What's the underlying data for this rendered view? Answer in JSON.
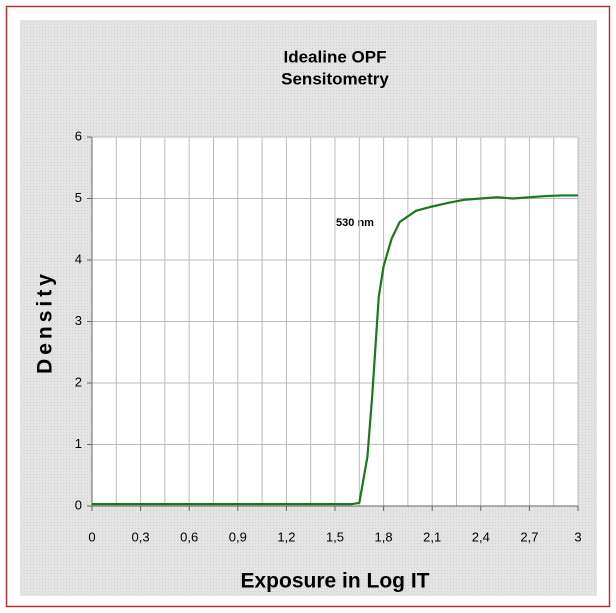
{
  "chart_data": {
    "type": "line",
    "title": [
      "Idealine OPF",
      "Sensitometry"
    ],
    "x_label": "Exposure in Log IT",
    "y_label": "Density",
    "annotation": "530 nm",
    "grid": true,
    "xlim": [
      0,
      3
    ],
    "ylim": [
      0,
      6
    ],
    "xticks": [
      0,
      {
        "value": 0.3,
        "label": "0,3"
      },
      {
        "value": 0.6,
        "label": "0,6"
      },
      {
        "value": 0.9,
        "label": "0,9"
      },
      {
        "value": 1.2,
        "label": "1,2"
      },
      {
        "value": 1.5,
        "label": "1,5"
      },
      {
        "value": 1.8,
        "label": "1,8"
      },
      {
        "value": 2.1,
        "label": "2,1"
      },
      {
        "value": 2.4,
        "label": "2,4"
      },
      {
        "value": 2.7,
        "label": "2,7"
      },
      3
    ],
    "yticks": [
      0,
      1,
      2,
      3,
      4,
      5,
      6
    ],
    "series": [
      {
        "name": "530 nm",
        "color": "#1a7a1a",
        "x": [
          0,
          0.5,
          1.0,
          1.6,
          1.65,
          1.7,
          1.73,
          1.75,
          1.77,
          1.8,
          1.85,
          1.9,
          2.0,
          2.1,
          2.2,
          2.3,
          2.4,
          2.5,
          2.6,
          2.7,
          2.8,
          2.9,
          3.0
        ],
        "values": [
          0.03,
          0.03,
          0.03,
          0.03,
          0.05,
          0.8,
          1.8,
          2.6,
          3.4,
          3.9,
          4.35,
          4.62,
          4.8,
          4.87,
          4.93,
          4.98,
          5.0,
          5.02,
          5.0,
          5.02,
          5.04,
          5.05,
          5.05
        ]
      }
    ]
  }
}
